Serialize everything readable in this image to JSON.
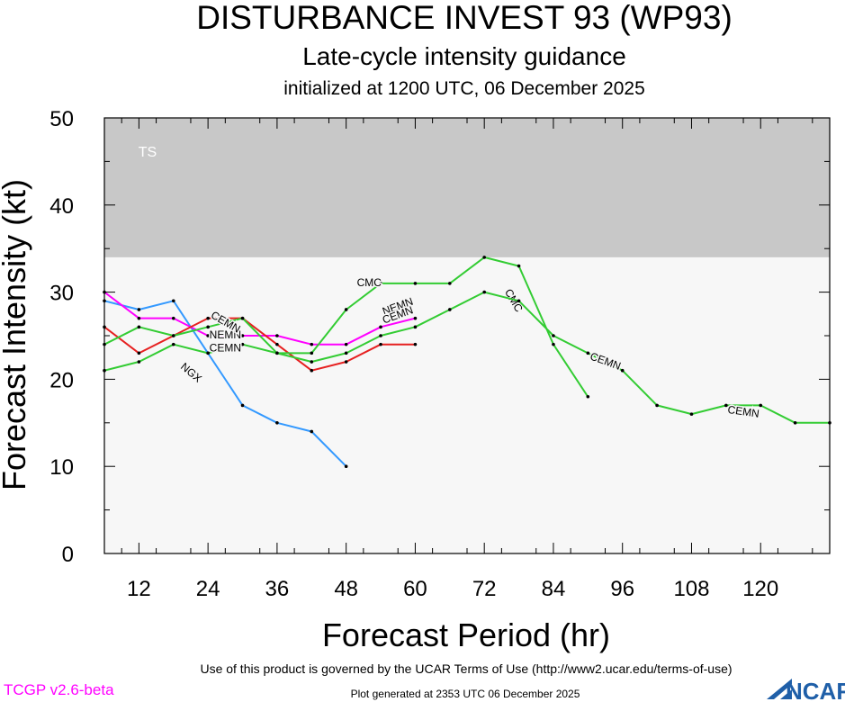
{
  "chart_data": {
    "type": "line",
    "title": "DISTURBANCE INVEST 93 (WP93)",
    "subtitle": "Late-cycle intensity guidance",
    "subtitle2": "initialized at 1200 UTC, 06 December 2025",
    "xlabel": "Forecast Period (hr)",
    "ylabel": "Forecast Intensity (kt)",
    "xlim": [
      6,
      132
    ],
    "ylim": [
      0,
      50
    ],
    "x_ticks": [
      12,
      24,
      36,
      48,
      60,
      72,
      84,
      96,
      108,
      120
    ],
    "y_ticks": [
      0,
      10,
      20,
      30,
      40,
      50
    ],
    "bands": [
      {
        "label": "TS",
        "y_from": 34,
        "y_to": 50,
        "color": "#c8c8c8"
      }
    ],
    "series": [
      {
        "name": "NGX",
        "color": "#3399ff",
        "x": [
          6,
          12,
          18,
          24,
          30,
          36,
          42,
          48
        ],
        "y": [
          29,
          28,
          29,
          23,
          17,
          15,
          14,
          10
        ],
        "labels": [
          {
            "text": "NGX",
            "x": 21,
            "y": 20.7,
            "rot": 40
          }
        ]
      },
      {
        "name": "NEMN",
        "color": "#ff00ff",
        "x": [
          6,
          12,
          18,
          24,
          30,
          36,
          42,
          48,
          54,
          60
        ],
        "y": [
          30,
          27,
          27,
          25,
          25,
          25,
          24,
          24,
          26,
          27
        ],
        "labels": [
          {
            "text": "NEMN",
            "x": 27,
            "y": 25,
            "rot": 0
          },
          {
            "text": "NEMN",
            "x": 57,
            "y": 28.3,
            "rot": -20
          }
        ]
      },
      {
        "name": "",
        "color": "#e62020",
        "x": [
          6,
          12,
          18,
          24,
          30,
          36,
          42,
          48,
          54,
          60
        ],
        "y": [
          26,
          23,
          25,
          27,
          27,
          24,
          21,
          22,
          24,
          24
        ],
        "labels": []
      },
      {
        "name": "CMC",
        "color": "#33cc33",
        "x": [
          6,
          12,
          18,
          24,
          30,
          36,
          42,
          48,
          54,
          60,
          66,
          72,
          78,
          84,
          90
        ],
        "y": [
          24,
          26,
          25,
          26,
          27,
          23,
          23,
          28,
          31,
          31,
          31,
          34,
          33,
          24,
          18
        ],
        "labels": [
          {
            "text": "CMC",
            "x": 52,
            "y": 31,
            "rot": 0
          },
          {
            "text": "CMC",
            "x": 77,
            "y": 29,
            "rot": 60
          },
          {
            "text": "CEMN",
            "x": 27,
            "y": 26.5,
            "rot": 30
          }
        ]
      },
      {
        "name": "CEMN",
        "color": "#33cc33",
        "x": [
          6,
          12,
          18,
          24,
          30,
          36,
          42,
          48,
          54,
          60,
          66,
          72,
          78,
          84,
          90,
          96,
          102,
          108,
          114,
          120,
          126,
          132
        ],
        "y": [
          21,
          22,
          24,
          23,
          24,
          23,
          22,
          23,
          25,
          26,
          28,
          30,
          29,
          25,
          23,
          21,
          17,
          16,
          17,
          17,
          15,
          15
        ],
        "labels": [
          {
            "text": "CEMN",
            "x": 27,
            "y": 23.5,
            "rot": 0
          },
          {
            "text": "CEMN",
            "x": 57,
            "y": 27.3,
            "rot": -20
          },
          {
            "text": "CEMN",
            "x": 93,
            "y": 22,
            "rot": 20
          },
          {
            "text": "CEMN",
            "x": 117,
            "y": 16.2,
            "rot": 8
          }
        ]
      }
    ]
  },
  "footer": {
    "terms": "Use of this product is governed by the UCAR Terms of Use (http://www2.ucar.edu/terms-of-use)",
    "generated": "Plot generated at 2353 UTC   06 December 2025",
    "version": "TCGP v2.6-beta",
    "logo_text": "NCAR"
  },
  "colors": {
    "version": "#ff00ff",
    "logo_blue": "#1f5fa8"
  }
}
